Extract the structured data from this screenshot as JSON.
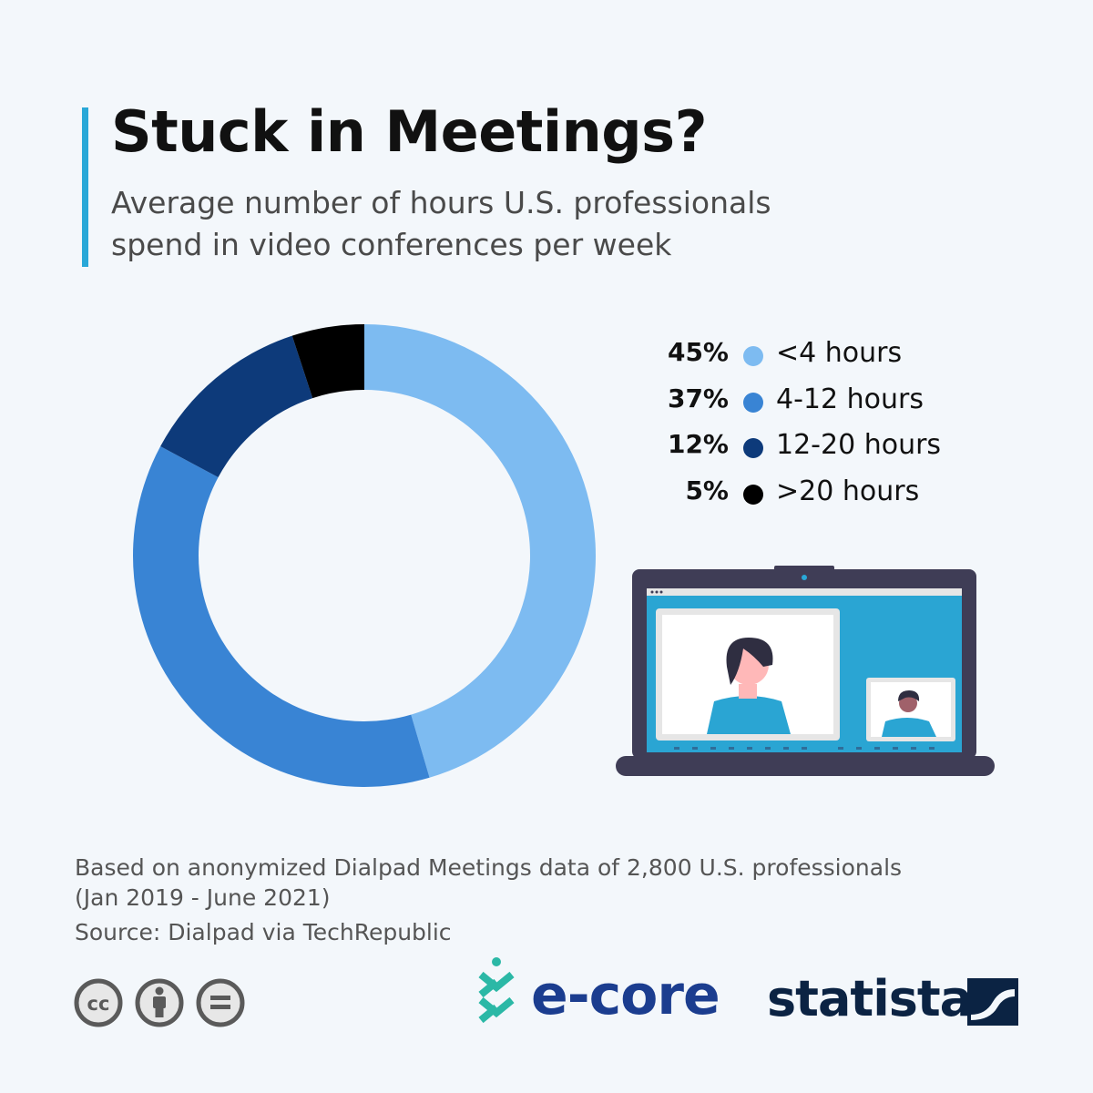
{
  "header": {
    "title": "Stuck in Meetings?",
    "subtitle": "Average number of hours U.S. professionals spend in video conferences per week"
  },
  "chart_data": {
    "type": "pie",
    "variant": "donut",
    "categories": [
      "<4 hours",
      "4-12 hours",
      "12-20 hours",
      ">20 hours"
    ],
    "values": [
      45,
      37,
      12,
      5
    ],
    "labels": [
      "45%",
      "37%",
      "12%",
      "5%"
    ],
    "colors": [
      "#7dbbf1",
      "#3984d4",
      "#0d3a7a",
      "#000000"
    ],
    "legend_position": "right"
  },
  "footer": {
    "note_line1": "Based on anonymized Dialpad Meetings data of 2,800 U.S. professionals",
    "note_line2": "(Jan 2019 - June 2021)",
    "source": "Source: Dialpad via TechRepublic"
  },
  "logos": {
    "ecore": "e-core",
    "statista": "statista"
  },
  "icons": [
    "creative-commons-icon",
    "attribution-icon",
    "no-derivatives-icon",
    "laptop-video-call-illustration"
  ]
}
